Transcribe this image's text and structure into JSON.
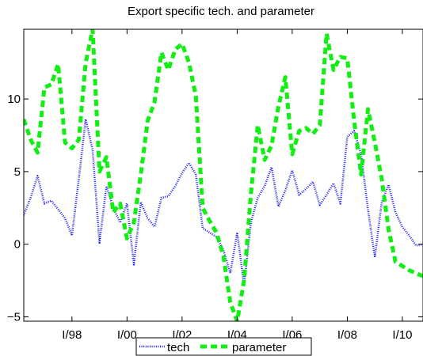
{
  "chart_data": {
    "type": "line",
    "title": "Export specific tech. and parameter",
    "xlabel": "",
    "ylabel": "",
    "x_tick_labels": [
      "I/98",
      "I/00",
      "I/02",
      "I/04",
      "I/06",
      "I/08",
      "I/10"
    ],
    "y_tick_labels": [
      "−5",
      "0",
      "5",
      "10"
    ],
    "y_ticks": [
      -5,
      0,
      5,
      10
    ],
    "xlim": [
      1996.25,
      2010.75
    ],
    "ylim": [
      -5.3,
      14.8
    ],
    "grid": false,
    "legend_position": "bottom-center",
    "series": [
      {
        "name": "tech",
        "color": "#1a1aff",
        "style": "dotted",
        "x": [
          1996.25,
          1996.5,
          1996.75,
          1997.0,
          1997.25,
          1997.5,
          1997.75,
          1998.0,
          1998.25,
          1998.5,
          1998.75,
          1999.0,
          1999.25,
          1999.5,
          1999.75,
          2000.0,
          2000.25,
          2000.5,
          2000.75,
          2001.0,
          2001.25,
          2001.5,
          2001.75,
          2002.0,
          2002.25,
          2002.5,
          2002.75,
          2003.0,
          2003.25,
          2003.5,
          2003.75,
          2004.0,
          2004.25,
          2004.5,
          2004.75,
          2005.0,
          2005.25,
          2005.5,
          2005.75,
          2006.0,
          2006.25,
          2006.5,
          2006.75,
          2007.0,
          2007.25,
          2007.5,
          2007.75,
          2008.0,
          2008.25,
          2008.5,
          2008.75,
          2009.0,
          2009.25,
          2009.5,
          2009.75,
          2010.0,
          2010.25,
          2010.5,
          2010.75
        ],
        "values": [
          2.0,
          3.2,
          4.7,
          2.8,
          3.0,
          2.4,
          1.8,
          0.6,
          4.5,
          8.6,
          6.5,
          0.1,
          4.0,
          2.5,
          1.5,
          2.8,
          -1.4,
          2.9,
          1.8,
          1.2,
          3.2,
          3.3,
          4.0,
          4.9,
          5.6,
          4.8,
          1.1,
          0.8,
          0.5,
          -0.4,
          -2.0,
          0.8,
          -2.8,
          1.5,
          3.2,
          4.0,
          5.3,
          2.6,
          3.7,
          5.1,
          3.4,
          3.8,
          4.3,
          2.7,
          3.4,
          4.2,
          2.8,
          7.4,
          7.8,
          6.2,
          2.4,
          -0.9,
          2.9,
          4.1,
          2.2,
          1.2,
          0.6,
          -0.1,
          0.0
        ]
      },
      {
        "name": "parameter",
        "color": "#11ee11",
        "style": "dashed",
        "x": [
          1996.25,
          1996.5,
          1996.75,
          1997.0,
          1997.25,
          1997.5,
          1997.75,
          1998.0,
          1998.25,
          1998.5,
          1998.75,
          1999.0,
          1999.25,
          1999.5,
          1999.75,
          2000.0,
          2000.25,
          2000.5,
          2000.75,
          2001.0,
          2001.25,
          2001.5,
          2001.75,
          2002.0,
          2002.25,
          2002.5,
          2002.75,
          2003.0,
          2003.25,
          2003.5,
          2003.75,
          2004.0,
          2004.25,
          2004.5,
          2004.75,
          2005.0,
          2005.25,
          2005.5,
          2005.75,
          2006.0,
          2006.25,
          2006.5,
          2006.75,
          2007.0,
          2007.25,
          2007.5,
          2007.75,
          2008.0,
          2008.25,
          2008.5,
          2008.75,
          2009.0,
          2009.25,
          2009.5,
          2009.75,
          2010.0,
          2010.25,
          2010.5,
          2010.75
        ],
        "values": [
          8.6,
          7.2,
          6.3,
          10.8,
          11.0,
          12.4,
          7.0,
          6.6,
          7.2,
          12.5,
          14.8,
          5.0,
          6.0,
          2.2,
          2.8,
          0.4,
          1.5,
          4.8,
          8.5,
          9.8,
          13.2,
          12.0,
          13.4,
          13.8,
          12.5,
          10.2,
          2.5,
          1.6,
          0.8,
          -0.8,
          -4.0,
          -5.3,
          -2.5,
          3.5,
          8.2,
          5.8,
          6.8,
          9.5,
          11.5,
          6.2,
          7.8,
          8.0,
          7.6,
          8.2,
          14.5,
          12.0,
          12.9,
          12.8,
          8.5,
          4.8,
          9.3,
          7.0,
          4.5,
          1.0,
          -1.2,
          -1.5,
          -1.8,
          -2.0,
          -2.2
        ]
      }
    ]
  }
}
